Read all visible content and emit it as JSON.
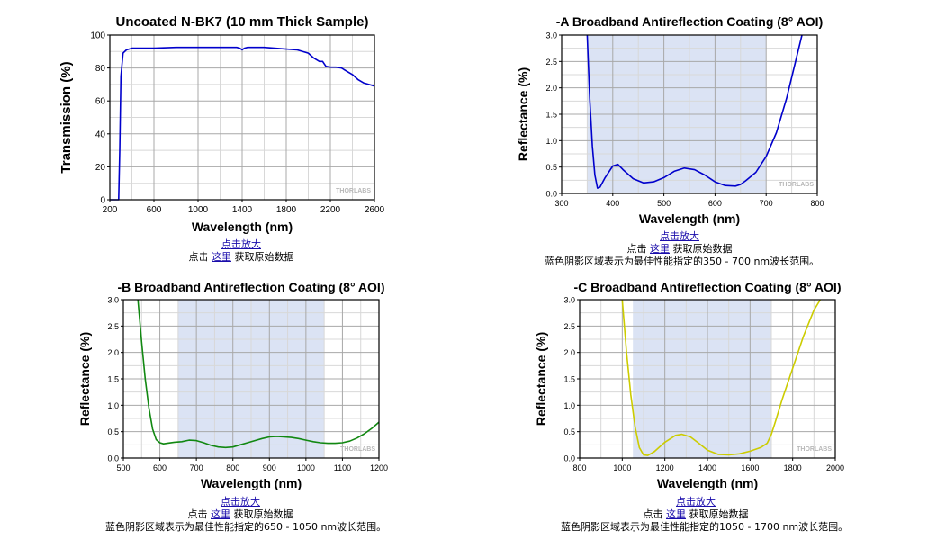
{
  "chart_data": [
    {
      "type": "line",
      "title": "Uncoated N-BK7 (10 mm Thick Sample)",
      "xlabel": "Wavelength (nm)",
      "ylabel": "Transmission (%)",
      "xlim": [
        200,
        2600
      ],
      "ylim": [
        0,
        100
      ],
      "xticks": [
        "200",
        "600",
        "1000",
        "1400",
        "1800",
        "2200",
        "2600"
      ],
      "yticks": [
        "0",
        "20",
        "40",
        "60",
        "80",
        "100"
      ],
      "grid": true,
      "watermark": "THORLABS",
      "series": [
        {
          "color": "#0000cc",
          "x": [
            200,
            260,
            280,
            290,
            300,
            320,
            350,
            400,
            600,
            800,
            1000,
            1200,
            1350,
            1380,
            1400,
            1420,
            1450,
            1600,
            1800,
            1900,
            2000,
            2050,
            2100,
            2130,
            2160,
            2200,
            2250,
            2300,
            2350,
            2400,
            2450,
            2500,
            2550,
            2600
          ],
          "values": [
            0,
            0,
            0,
            30,
            75,
            89,
            91,
            92,
            92,
            92.5,
            92.5,
            92.5,
            92.5,
            92,
            91,
            92,
            92.5,
            92.5,
            91.5,
            91,
            89,
            86,
            84,
            84,
            81,
            80.5,
            80.5,
            80,
            78,
            76,
            73,
            71,
            70,
            69
          ]
        }
      ]
    },
    {
      "type": "line",
      "title": "-A Broadband Antireflection Coating (8° AOI)",
      "xlabel": "Wavelength (nm)",
      "ylabel": "Reflectance (%)",
      "xlim": [
        300,
        800
      ],
      "ylim": [
        0,
        3
      ],
      "xticks": [
        "300",
        "400",
        "500",
        "600",
        "700",
        "800"
      ],
      "yticks": [
        "0.0",
        "0.5",
        "1.0",
        "1.5",
        "2.0",
        "2.5",
        "3.0"
      ],
      "shaded_range": [
        350,
        700
      ],
      "grid": true,
      "watermark": "THORLABS",
      "series": [
        {
          "color": "#0000cc",
          "x": [
            350,
            355,
            360,
            365,
            370,
            375,
            385,
            400,
            410,
            420,
            440,
            460,
            480,
            500,
            520,
            540,
            560,
            580,
            600,
            620,
            640,
            650,
            660,
            680,
            700,
            720,
            740,
            760,
            770
          ],
          "values": [
            3.0,
            1.8,
            0.9,
            0.35,
            0.1,
            0.12,
            0.3,
            0.52,
            0.55,
            0.45,
            0.28,
            0.2,
            0.22,
            0.3,
            0.42,
            0.48,
            0.45,
            0.35,
            0.22,
            0.15,
            0.14,
            0.17,
            0.24,
            0.4,
            0.7,
            1.15,
            1.8,
            2.6,
            3.0
          ]
        }
      ]
    },
    {
      "type": "line",
      "title": "-B Broadband Antireflection Coating (8° AOI)",
      "xlabel": "Wavelength (nm)",
      "ylabel": "Reflectance (%)",
      "xlim": [
        500,
        1200
      ],
      "ylim": [
        0,
        3
      ],
      "xticks": [
        "500",
        "600",
        "700",
        "800",
        "900",
        "1000",
        "1100",
        "1200"
      ],
      "yticks": [
        "0.0",
        "0.5",
        "1.0",
        "1.5",
        "2.0",
        "2.5",
        "3.0"
      ],
      "shaded_range": [
        650,
        1050
      ],
      "grid": true,
      "watermark": "THORLABS",
      "series": [
        {
          "color": "#118811",
          "x": [
            540,
            550,
            560,
            570,
            580,
            590,
            600,
            610,
            620,
            640,
            660,
            680,
            700,
            720,
            740,
            760,
            780,
            800,
            820,
            840,
            860,
            880,
            900,
            920,
            940,
            960,
            980,
            1000,
            1020,
            1040,
            1060,
            1080,
            1100,
            1120,
            1140,
            1160,
            1180,
            1200
          ],
          "values": [
            3.0,
            2.2,
            1.5,
            0.95,
            0.55,
            0.35,
            0.29,
            0.27,
            0.28,
            0.3,
            0.31,
            0.34,
            0.33,
            0.29,
            0.24,
            0.21,
            0.2,
            0.21,
            0.25,
            0.29,
            0.33,
            0.37,
            0.4,
            0.41,
            0.4,
            0.39,
            0.37,
            0.34,
            0.31,
            0.29,
            0.28,
            0.28,
            0.29,
            0.32,
            0.38,
            0.46,
            0.56,
            0.68
          ]
        }
      ]
    },
    {
      "type": "line",
      "title": "-C Broadband Antireflection Coating (8° AOI)",
      "xlabel": "Wavelength (nm)",
      "ylabel": "Reflectance (%)",
      "xlim": [
        800,
        2000
      ],
      "ylim": [
        0,
        3
      ],
      "xticks": [
        "800",
        "1000",
        "1200",
        "1400",
        "1600",
        "1800",
        "2000"
      ],
      "yticks": [
        "0.0",
        "0.5",
        "1.0",
        "1.5",
        "2.0",
        "2.5",
        "3.0"
      ],
      "shaded_range": [
        1050,
        1700
      ],
      "grid": true,
      "watermark": "THORLABS",
      "series": [
        {
          "color": "#cccc00",
          "x": [
            1000,
            1020,
            1040,
            1060,
            1080,
            1100,
            1120,
            1150,
            1200,
            1250,
            1280,
            1320,
            1360,
            1400,
            1450,
            1500,
            1550,
            1600,
            1650,
            1680,
            1700,
            1720,
            1750,
            1800,
            1850,
            1900,
            1930
          ],
          "values": [
            3.0,
            2.0,
            1.2,
            0.6,
            0.2,
            0.06,
            0.05,
            0.12,
            0.3,
            0.43,
            0.45,
            0.4,
            0.28,
            0.15,
            0.07,
            0.06,
            0.08,
            0.13,
            0.2,
            0.28,
            0.45,
            0.7,
            1.1,
            1.7,
            2.3,
            2.8,
            3.0
          ]
        }
      ]
    }
  ],
  "captions": [
    {
      "zoom_link": "点击放大",
      "click_prefix": "点击 ",
      "here_link": "这里",
      "get_data": " 获取原始数据",
      "note": ""
    },
    {
      "zoom_link": "点击放大",
      "click_prefix": "点击 ",
      "here_link": "这里",
      "get_data": " 获取原始数据",
      "note": "蓝色阴影区域表示为最佳性能指定的350 - 700 nm波长范围。"
    },
    {
      "zoom_link": "点击放大",
      "click_prefix": "点击 ",
      "here_link": "这里",
      "get_data": " 获取原始数据",
      "note": "蓝色阴影区域表示为最佳性能指定的650 - 1050 nm波长范围。"
    },
    {
      "zoom_link": "点击放大",
      "click_prefix": "点击 ",
      "here_link": "这里",
      "get_data": " 获取原始数据",
      "note": "蓝色阴影区域表示为最佳性能指定的1050 - 1700 nm波长范围。"
    }
  ]
}
